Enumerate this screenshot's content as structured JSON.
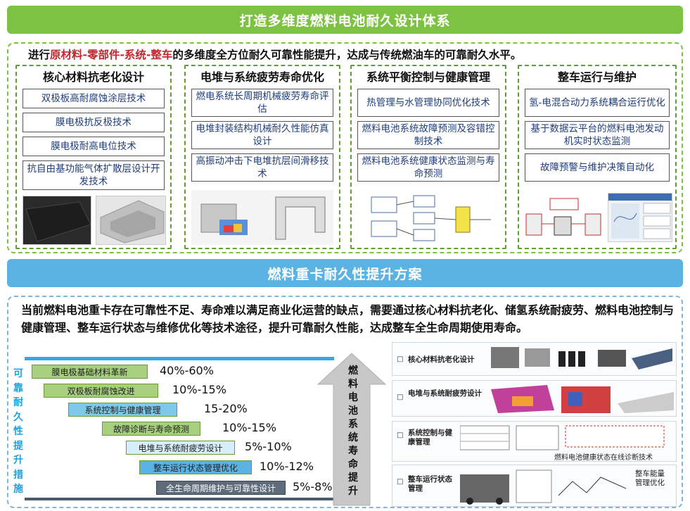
{
  "banner_top": "打造多维度燃料电池耐久设计体系",
  "intro": {
    "prefix": "进行",
    "red": "原材料-零部件-系统-整车",
    "suffix": "的多维度全方位耐久可靠性能提升，达成与传统燃油车的可靠耐久水平。"
  },
  "columns": [
    {
      "title": "核心材料抗老化设计",
      "items": [
        "双极板高耐腐蚀涂层技术",
        "膜电极抗反极技术",
        "膜电极耐高电位技术",
        "抗自由基功能气体扩散层设计开发技术"
      ]
    },
    {
      "title": "电堆与系统疲劳寿命优化",
      "items": [
        "燃电系统长周期机械疲劳寿命评估",
        "电堆封装结构机械耐久性能仿真设计",
        "高振动冲击下电堆抗层间滑移技术"
      ]
    },
    {
      "title": "系统平衡控制与健康管理",
      "items": [
        "热管理与水管理协同优化技术",
        "燃料电池系统故障预测及容错控制技术",
        "燃料电池系统健康状态监测与寿命预测"
      ]
    },
    {
      "title": "整车运行与维护",
      "items": [
        "氢-电混合动力系统耦合运行优化",
        "基于数据云平台的燃料电池发动机实时状态监测",
        "故障预警与维护决策自动化"
      ]
    }
  ],
  "banner_mid": "燃料重卡耐久性提升方案",
  "bottom_intro": "当前燃料电池重卡存在可靠性不足、寿命难以满足商业化运营的缺点，需要通过核心材料抗老化、储氢系统耐疲劳、燃料电池控制与健康管理、整车运行状态与维修优化等技术途径，提升可靠耐久性能，达成整车全生命周期使用寿命。",
  "vertical_label": "可靠耐久性提升措施",
  "bars": [
    {
      "label": "膜电极基础材料革新",
      "pct": "40%-60%",
      "color": "#a6cf7e"
    },
    {
      "label": "双极板耐腐蚀改进",
      "pct": "10%-15%",
      "color": "#a6cf7e"
    },
    {
      "label": "系统控制与健康管理",
      "pct": "15-20%",
      "color": "#7ec8ea"
    },
    {
      "label": "故障诊断与寿命预测",
      "pct": "10%-15%",
      "color": "#a6cf7e"
    },
    {
      "label": "电堆与系统耐疲劳设计",
      "pct": "5%-10%",
      "color": "#d6eefa"
    },
    {
      "label": "整车运行状态管理优化",
      "pct": "10%-12%",
      "color": "#5bb3e4"
    },
    {
      "label": "全生命周期维护与可靠性设计",
      "pct": "5%-8%",
      "color": "#5e6b7a"
    }
  ],
  "arrow_text": "燃料电池系统寿命提升",
  "right_panels": [
    {
      "label": "核心材料抗老化设计"
    },
    {
      "label": "电堆与系统耐疲劳设计"
    },
    {
      "label": "系统控制与健康管理",
      "caption": "燃料电池健康状态在线诊断技术"
    },
    {
      "label": "整车运行状态管理",
      "caption": "整车能量管理优化"
    }
  ],
  "colors": {
    "green": "#7dc243",
    "blue": "#5bb3e4",
    "red": "#c0282d"
  }
}
